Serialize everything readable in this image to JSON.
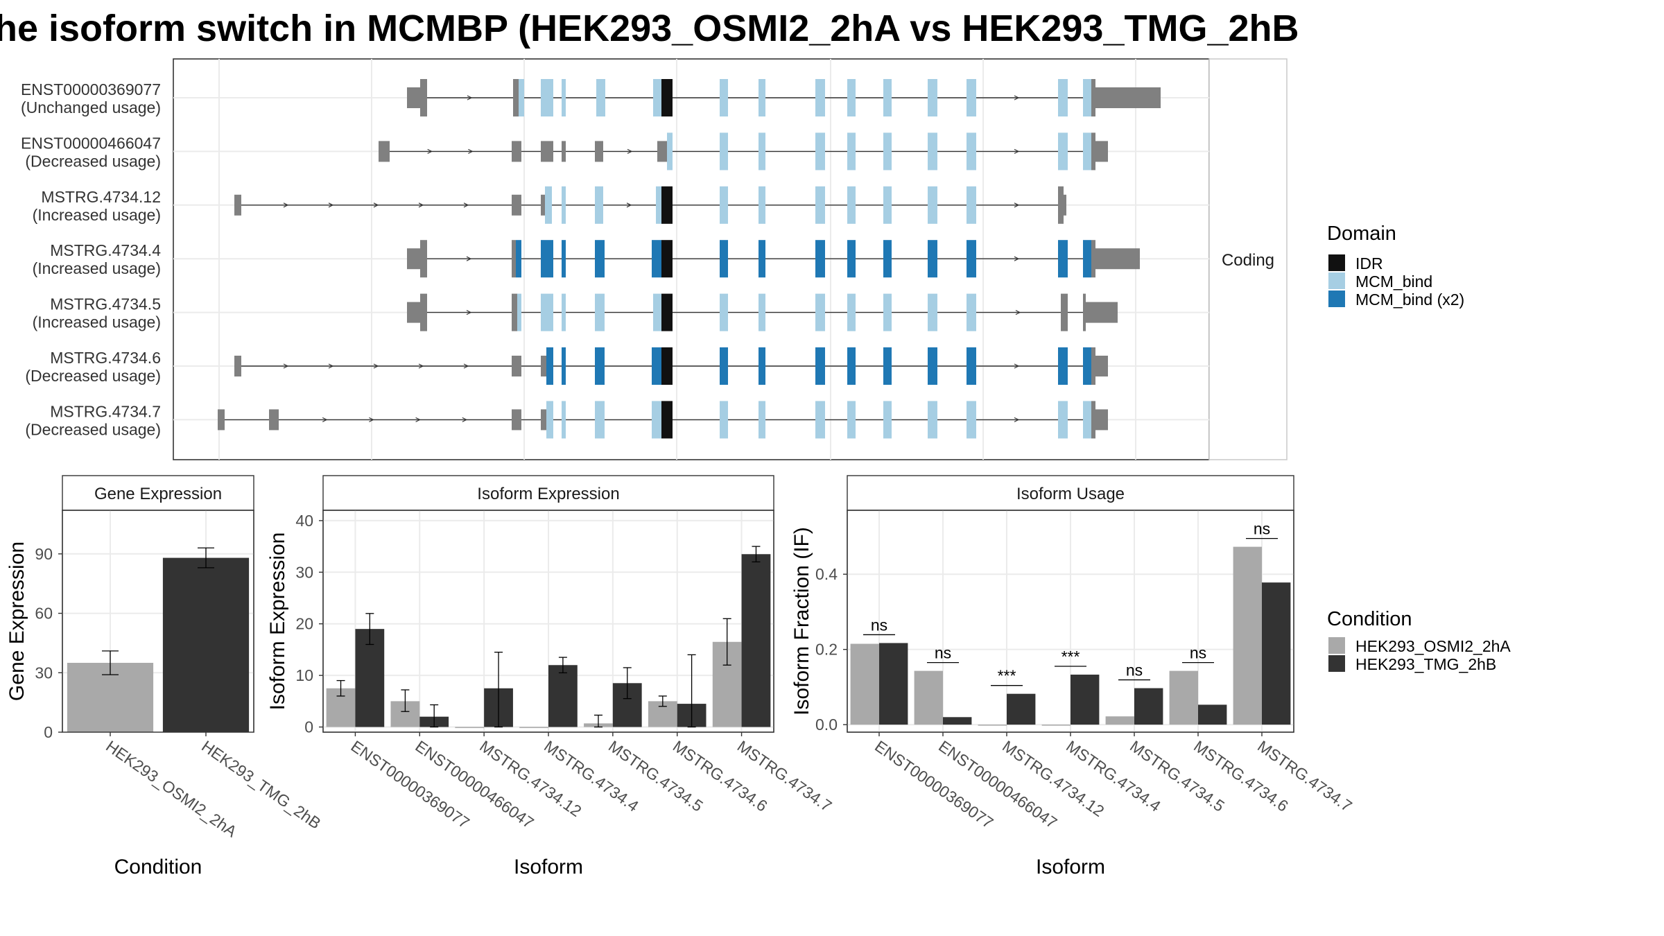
{
  "title": "he isoform switch in MCMBP (HEK293_OSMI2_2hA vs HEK293_TMG_2hB",
  "structure_panel": {
    "strip_label": "Coding",
    "isoforms": [
      {
        "id": "ENST00000369077",
        "usage": "(Unchanged usage)"
      },
      {
        "id": "ENST00000466047",
        "usage": "(Decreased usage)"
      },
      {
        "id": "MSTRG.4734.12",
        "usage": "(Increased usage)"
      },
      {
        "id": "MSTRG.4734.4",
        "usage": "(Increased usage)"
      },
      {
        "id": "MSTRG.4734.5",
        "usage": "(Increased usage)"
      },
      {
        "id": "MSTRG.4734.6",
        "usage": "(Decreased usage)"
      },
      {
        "id": "MSTRG.4734.7",
        "usage": "(Decreased usage)"
      }
    ],
    "domain_legend": {
      "title": "Domain",
      "items": [
        {
          "label": "IDR",
          "color": "#111111"
        },
        {
          "label": "MCM_bind",
          "color": "#a6cee3"
        },
        {
          "label": "MCM_bind (x2)",
          "color": "#1f78b4"
        }
      ]
    }
  },
  "condition_legend": {
    "title": "Condition",
    "items": [
      {
        "label": "HEK293_OSMI2_2hA",
        "color": "#a9a9a9"
      },
      {
        "label": "HEK293_TMG_2hB",
        "color": "#333333"
      }
    ]
  },
  "chart_data": [
    {
      "type": "bar",
      "title": "Gene Expression",
      "xlabel": "Condition",
      "ylabel": "Gene Expression",
      "categories": [
        "HEK293_OSMI2_2hA",
        "HEK293_TMG_2hB"
      ],
      "values": [
        35,
        88
      ],
      "error": [
        [
          29,
          41
        ],
        [
          83,
          93
        ]
      ],
      "ylim": [
        0,
        112
      ],
      "yticks": [
        0,
        30,
        60,
        90
      ]
    },
    {
      "type": "bar",
      "title": "Isoform Expression",
      "xlabel": "Isoform",
      "ylabel": "Isoform Expression",
      "categories": [
        "ENST00000369077",
        "ENST00000466047",
        "MSTRG.4734.12",
        "MSTRG.4734.4",
        "MSTRG.4734.5",
        "MSTRG.4734.6",
        "MSTRG.4734.7"
      ],
      "series": [
        {
          "name": "HEK293_OSMI2_2hA",
          "values": [
            7.5,
            5,
            0,
            0,
            0.7,
            5,
            16.5
          ],
          "error": [
            [
              6,
              9
            ],
            [
              3,
              7.2
            ],
            null,
            null,
            [
              0,
              2.3
            ],
            [
              4,
              6
            ],
            [
              12,
              21
            ]
          ]
        },
        {
          "name": "HEK293_TMG_2hB",
          "values": [
            19,
            2,
            7.5,
            12,
            8.5,
            4.5,
            33.5
          ],
          "error": [
            [
              16,
              22
            ],
            [
              0,
              4.3
            ],
            [
              0,
              14.5
            ],
            [
              10.5,
              13.5
            ],
            [
              5.5,
              11.5
            ],
            [
              0,
              14
            ],
            [
              32,
              35
            ]
          ]
        }
      ],
      "ylim": [
        -1,
        42
      ],
      "yticks": [
        0,
        10,
        20,
        30,
        40
      ]
    },
    {
      "type": "bar",
      "title": "Isoform Usage",
      "xlabel": "Isoform",
      "ylabel": "Isoform Fraction (IF)",
      "categories": [
        "ENST00000369077",
        "ENST00000466047",
        "MSTRG.4734.12",
        "MSTRG.4734.4",
        "MSTRG.4734.5",
        "MSTRG.4734.6",
        "MSTRG.4734.7"
      ],
      "series": [
        {
          "name": "HEK293_OSMI2_2hA",
          "values": [
            0.215,
            0.143,
            0,
            0,
            0.022,
            0.143,
            0.473
          ]
        },
        {
          "name": "HEK293_TMG_2hB",
          "values": [
            0.217,
            0.02,
            0.082,
            0.133,
            0.097,
            0.053,
            0.378
          ]
        }
      ],
      "significance": [
        "ns",
        "ns",
        "***",
        "***",
        "ns",
        "ns",
        "ns"
      ],
      "ylim": [
        -0.02,
        0.57
      ],
      "yticks": [
        0.0,
        0.2,
        0.4
      ],
      "ytick_labels": [
        "0.0",
        "0.2",
        "0.4"
      ]
    }
  ]
}
